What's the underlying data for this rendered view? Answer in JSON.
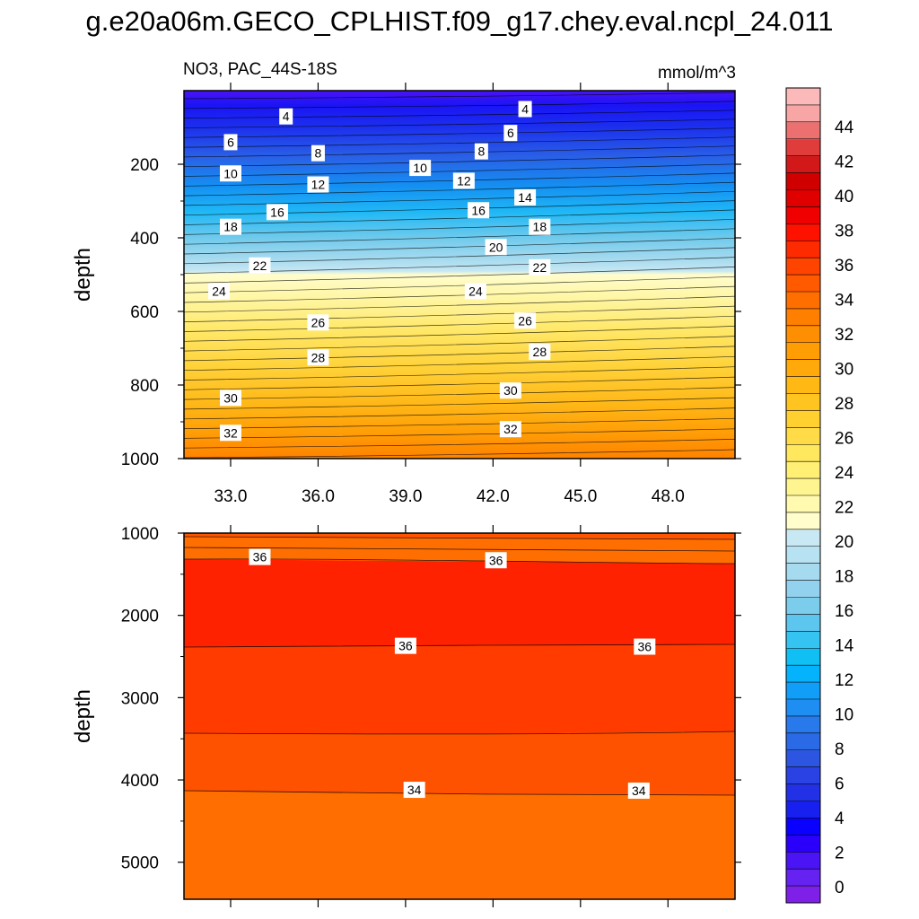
{
  "page": {
    "title": "g.e20a06m.GECO_CPLHIST.f09_g17.chey.eval.ncpl_24.011"
  },
  "chart_data": {
    "type": "contour",
    "variable": "NO3",
    "region": "PAC_44S-18S",
    "subtitle_left": "NO3, PAC_44S-18S",
    "subtitle_right": "mmol/m^3",
    "x": {
      "label": "",
      "range": [
        31.4,
        50.3
      ],
      "ticks": [
        33.0,
        36.0,
        39.0,
        42.0,
        45.0,
        48.0
      ],
      "tick_labels": [
        "33.0",
        "36.0",
        "39.0",
        "42.0",
        "45.0",
        "48.0"
      ]
    },
    "panels": [
      {
        "name": "upper",
        "ylabel": "depth",
        "depth_range": [
          0,
          1000
        ],
        "yticks": [
          200,
          400,
          600,
          800,
          1000
        ],
        "ytick_labels": [
          "200",
          "400",
          "600",
          "800",
          "1000"
        ],
        "contour_labels": [
          {
            "x": 34.9,
            "depth": 70,
            "text": "4"
          },
          {
            "x": 43.1,
            "depth": 50,
            "text": "4"
          },
          {
            "x": 33.0,
            "depth": 140,
            "text": "6"
          },
          {
            "x": 42.6,
            "depth": 115,
            "text": "6"
          },
          {
            "x": 36.0,
            "depth": 170,
            "text": "8"
          },
          {
            "x": 41.6,
            "depth": 165,
            "text": "8"
          },
          {
            "x": 33.0,
            "depth": 225,
            "text": "10"
          },
          {
            "x": 39.5,
            "depth": 210,
            "text": "10"
          },
          {
            "x": 36.0,
            "depth": 255,
            "text": "12"
          },
          {
            "x": 41.0,
            "depth": 245,
            "text": "12"
          },
          {
            "x": 43.1,
            "depth": 290,
            "text": "14"
          },
          {
            "x": 34.6,
            "depth": 330,
            "text": "16"
          },
          {
            "x": 41.5,
            "depth": 325,
            "text": "16"
          },
          {
            "x": 33.0,
            "depth": 370,
            "text": "18"
          },
          {
            "x": 43.6,
            "depth": 370,
            "text": "18"
          },
          {
            "x": 42.1,
            "depth": 425,
            "text": "20"
          },
          {
            "x": 34.0,
            "depth": 475,
            "text": "22"
          },
          {
            "x": 43.6,
            "depth": 480,
            "text": "22"
          },
          {
            "x": 32.6,
            "depth": 545,
            "text": "24"
          },
          {
            "x": 41.4,
            "depth": 545,
            "text": "24"
          },
          {
            "x": 36.0,
            "depth": 630,
            "text": "26"
          },
          {
            "x": 43.1,
            "depth": 625,
            "text": "26"
          },
          {
            "x": 36.0,
            "depth": 725,
            "text": "28"
          },
          {
            "x": 43.6,
            "depth": 710,
            "text": "28"
          },
          {
            "x": 33.0,
            "depth": 835,
            "text": "30"
          },
          {
            "x": 42.6,
            "depth": 815,
            "text": "30"
          },
          {
            "x": 33.0,
            "depth": 930,
            "text": "32"
          },
          {
            "x": 42.6,
            "depth": 920,
            "text": "32"
          }
        ]
      },
      {
        "name": "lower",
        "ylabel": "depth",
        "depth_range": [
          1000,
          5450
        ],
        "yticks": [
          1000,
          2000,
          3000,
          4000,
          5000
        ],
        "ytick_labels": [
          "1000",
          "2000",
          "3000",
          "4000",
          "5000"
        ],
        "contour_labels": [
          {
            "x": 34.0,
            "depth": 1290,
            "text": "36"
          },
          {
            "x": 42.1,
            "depth": 1330,
            "text": "36"
          },
          {
            "x": 39.0,
            "depth": 2370,
            "text": "36"
          },
          {
            "x": 47.2,
            "depth": 2380,
            "text": "36"
          },
          {
            "x": 39.3,
            "depth": 4120,
            "text": "34"
          },
          {
            "x": 47.0,
            "depth": 4130,
            "text": "34"
          }
        ]
      }
    ],
    "colorbar": {
      "labels": [
        "0",
        "2",
        "4",
        "6",
        "8",
        "10",
        "12",
        "14",
        "16",
        "18",
        "20",
        "22",
        "24",
        "26",
        "28",
        "30",
        "32",
        "34",
        "36",
        "38",
        "40",
        "42",
        "44"
      ],
      "colors": [
        "#7f20e8",
        "#6522f0",
        "#4a14f4",
        "#2b00fb",
        "#0a00ff",
        "#1820f0",
        "#2230e6",
        "#2a42e4",
        "#2c55e2",
        "#2a6ae6",
        "#2879ec",
        "#1e8ef2",
        "#119ef8",
        "#05b2fc",
        "#10c0f5",
        "#35c4f2",
        "#5dc6ef",
        "#7ccdeb",
        "#93d2ee",
        "#a6daef",
        "#b7e2f1",
        "#c8e8f3",
        "#fffdcc",
        "#fffab0",
        "#fff590",
        "#fff075",
        "#ffe75e",
        "#ffdc47",
        "#ffd030",
        "#ffc41f",
        "#ffb814",
        "#ffaa0a",
        "#ff9d05",
        "#ff8f02",
        "#ff7f00",
        "#ff6f00",
        "#ff5a00",
        "#ff4400",
        "#ff2b00",
        "#ff1100",
        "#f00000",
        "#e00000",
        "#d00000",
        "#d21818",
        "#e03c3c",
        "#ed7070",
        "#f7a5a5",
        "#fbb9b9"
      ]
    }
  }
}
